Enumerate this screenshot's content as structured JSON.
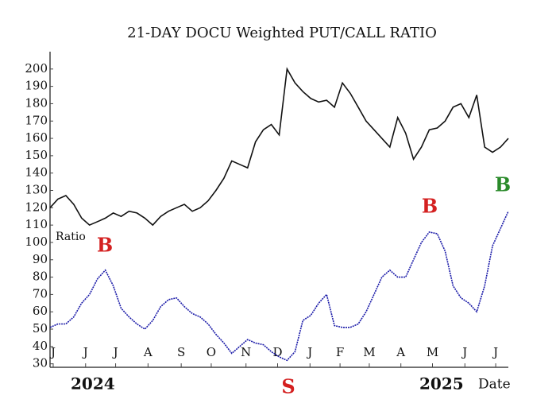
{
  "chart_data": {
    "type": "line",
    "title": "21-DAY DOCU Weighted PUT/CALL RATIO",
    "ylabel": "Ratio",
    "xlabel": "Date",
    "year_labels": [
      "2024",
      "2025"
    ],
    "annotations": [
      "B",
      "B",
      "B",
      "S"
    ],
    "annotation_colors": [
      "#d42020",
      "#d42020",
      "#2a8a2a",
      "#d42020"
    ],
    "x": [
      0,
      1,
      2,
      3,
      4,
      5,
      6,
      7,
      8,
      9,
      10,
      11,
      12,
      13,
      14,
      15,
      16,
      17,
      18,
      19,
      20,
      21,
      22,
      23,
      24,
      25,
      26,
      27,
      28,
      29,
      30,
      31,
      32,
      33,
      34,
      35,
      36,
      37,
      38,
      39,
      40,
      41,
      42,
      43,
      44,
      45,
      46,
      47,
      48,
      49,
      50,
      51,
      52,
      53,
      54,
      55,
      56,
      57,
      58
    ],
    "xlim": [
      0,
      58
    ],
    "xticks": [
      {
        "value": 0.4,
        "label": "J"
      },
      {
        "value": 4.5,
        "label": "J"
      },
      {
        "value": 8.3,
        "label": "J"
      },
      {
        "value": 12.4,
        "label": "A"
      },
      {
        "value": 16.6,
        "label": "S"
      },
      {
        "value": 20.4,
        "label": "O"
      },
      {
        "value": 24.8,
        "label": "N"
      },
      {
        "value": 28.8,
        "label": "D"
      },
      {
        "value": 32.9,
        "label": "J"
      },
      {
        "value": 36.7,
        "label": "F"
      },
      {
        "value": 40.4,
        "label": "M"
      },
      {
        "value": 44.4,
        "label": "A"
      },
      {
        "value": 48.4,
        "label": "M"
      },
      {
        "value": 52.5,
        "label": "J"
      },
      {
        "value": 56.4,
        "label": "J"
      }
    ],
    "ylim": [
      28,
      210
    ],
    "yticks": [
      30,
      40,
      50,
      60,
      70,
      80,
      90,
      100,
      110,
      120,
      130,
      140,
      150,
      160,
      170,
      180,
      190,
      200
    ],
    "series": [
      {
        "color": "#111111",
        "values": [
          120,
          125,
          127,
          122,
          114,
          110,
          112,
          114,
          117,
          115,
          118,
          117,
          114,
          110,
          115,
          118,
          120,
          122,
          118,
          120,
          124,
          130,
          137,
          147,
          145,
          143,
          158,
          165,
          168,
          162,
          200,
          192,
          187,
          183,
          181,
          182,
          178,
          192,
          186,
          178,
          170,
          165,
          160,
          155,
          172,
          163,
          148,
          155,
          165,
          166,
          170,
          178,
          180,
          172,
          185,
          155,
          152,
          155,
          160
        ]
      },
      {
        "color": "#1a1aa8",
        "values": [
          51,
          53,
          53,
          57,
          65,
          70,
          79,
          84,
          75,
          62,
          57,
          53,
          50,
          55,
          63,
          67,
          68,
          63,
          59,
          57,
          53,
          47,
          42,
          36,
          40,
          44,
          42,
          41,
          37,
          34,
          32,
          37,
          55,
          58,
          65,
          70,
          52,
          51,
          51,
          53,
          60,
          70,
          80,
          84,
          80,
          80,
          90,
          100,
          106,
          105,
          95,
          75,
          68,
          65,
          60,
          75,
          98,
          108,
          118
        ]
      }
    ]
  }
}
